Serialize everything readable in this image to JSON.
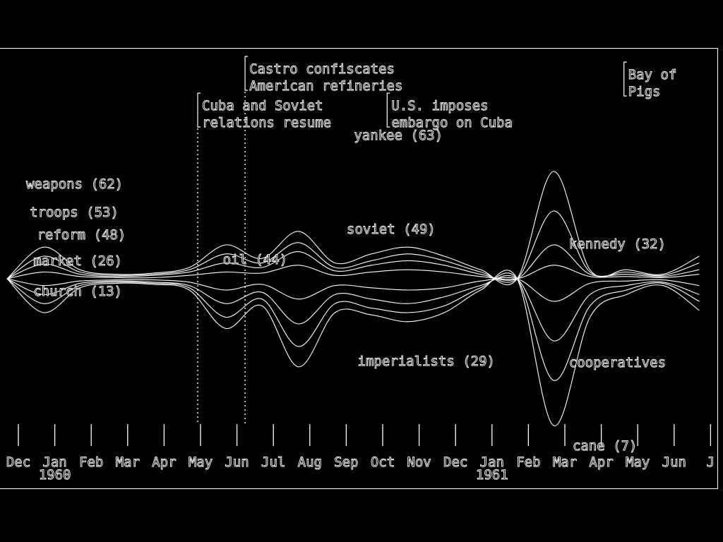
{
  "chart_data": {
    "type": "area",
    "title": "",
    "xlabel": "",
    "ylabel": "",
    "x": [
      "Dec",
      "Jan",
      "Feb",
      "Mar",
      "Apr",
      "May",
      "Jun",
      "Jul",
      "Aug",
      "Sep",
      "Oct",
      "Nov",
      "Dec",
      "Jan",
      "Feb",
      "Mar",
      "Apr",
      "May",
      "Jun",
      "J"
    ],
    "year_labels": [
      {
        "year": "1960",
        "month_index": 1
      },
      {
        "year": "1961",
        "month_index": 13
      }
    ],
    "events": [
      {
        "text": "Castro confiscates",
        "text2": "American refineries",
        "month": 6.3
      },
      {
        "text": "Cuba and Soviet",
        "text2": "relations resume",
        "month": 5.0
      },
      {
        "text": "U.S. imposes",
        "text2": "embargo on Cuba",
        "month": 10.2
      },
      {
        "text": "Bay of",
        "text2": "Pigs",
        "month": 16.7
      }
    ],
    "series_labels": [
      {
        "text": "weapons (62)",
        "month": 0.6,
        "level": 80
      },
      {
        "text": "troops (53)",
        "month": 0.7,
        "level": 55
      },
      {
        "text": "reform (48)",
        "month": 0.9,
        "level": 35
      },
      {
        "text": "market (26)",
        "month": 0.8,
        "level": 12
      },
      {
        "text": "church (13)",
        "month": 0.8,
        "level": -15
      },
      {
        "text": "yankee (63)",
        "month": 9.6,
        "level": 123
      },
      {
        "text": "soviet (49)",
        "month": 9.4,
        "level": 40
      },
      {
        "text": "oil (44)",
        "month": 6.0,
        "level": 13
      },
      {
        "text": "imperialists (29)",
        "month": 9.7,
        "level": -77
      },
      {
        "text": "kennedy (32)",
        "month": 15.5,
        "level": 27
      },
      {
        "text": "cooperatives",
        "month": 15.5,
        "level": -78
      },
      {
        "text": "cane (7)",
        "month": 15.6,
        "level": -152
      }
    ],
    "streams": [
      {
        "values": [
          0,
          28,
          8,
          4,
          5,
          10,
          30,
          18,
          42,
          14,
          22,
          28,
          20,
          8,
          0,
          95,
          8,
          8,
          4,
          20
        ]
      },
      {
        "values": [
          0,
          20,
          6,
          3,
          4,
          8,
          22,
          14,
          32,
          10,
          16,
          22,
          16,
          6,
          0,
          60,
          6,
          6,
          3,
          14
        ]
      },
      {
        "values": [
          0,
          13,
          4,
          2,
          3,
          6,
          14,
          10,
          24,
          7,
          12,
          16,
          12,
          4,
          0,
          30,
          4,
          4,
          2,
          8
        ]
      },
      {
        "values": [
          0,
          6,
          2,
          1,
          1,
          3,
          6,
          5,
          12,
          3,
          6,
          8,
          6,
          2,
          0,
          12,
          2,
          2,
          1,
          4
        ]
      },
      {
        "values": [
          0,
          -6,
          -2,
          -1,
          -1,
          -3,
          -10,
          -5,
          -18,
          -6,
          -8,
          -10,
          -8,
          -2,
          0,
          -20,
          -4,
          -2,
          -1,
          -6
        ]
      },
      {
        "values": [
          0,
          -14,
          -4,
          -2,
          -3,
          -6,
          -22,
          -12,
          -40,
          -14,
          -18,
          -22,
          -16,
          -6,
          0,
          -55,
          -14,
          -6,
          -3,
          -14
        ]
      },
      {
        "values": [
          0,
          -22,
          -6,
          -3,
          -4,
          -8,
          -34,
          -18,
          -60,
          -22,
          -26,
          -30,
          -24,
          -8,
          0,
          -90,
          -24,
          -10,
          -4,
          -20
        ]
      },
      {
        "values": [
          0,
          -30,
          -8,
          -4,
          -5,
          -10,
          -44,
          -24,
          -78,
          -30,
          -32,
          -38,
          -30,
          -10,
          0,
          -130,
          -34,
          -14,
          -6,
          -28
        ]
      }
    ]
  }
}
